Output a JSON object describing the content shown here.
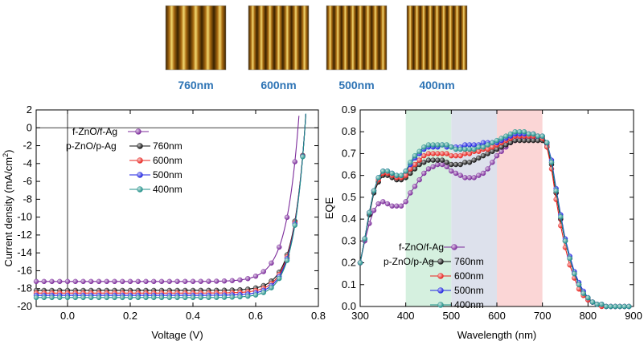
{
  "afm_panels": [
    {
      "label": "760nm",
      "stripes": 5
    },
    {
      "label": "600nm",
      "stripes": 7
    },
    {
      "label": "500nm",
      "stripes": 8
    },
    {
      "label": "400nm",
      "stripes": 9
    }
  ],
  "chart_data": [
    {
      "type": "line",
      "xlabel": "Voltage (V)",
      "ylabel": "Current density (mA/cm",
      "ylabel_sup": "2",
      "ylabel_close": ")",
      "xlim": [
        -0.1,
        0.8
      ],
      "ylim": [
        -20,
        2
      ],
      "xticks": [
        "0.0",
        "0.2",
        "0.4",
        "0.6",
        "0.8"
      ],
      "yticks": [
        "2",
        "0",
        "-2",
        "-4",
        "-6",
        "-8",
        "-10",
        "-12",
        "-14",
        "-16",
        "-18",
        "-20"
      ],
      "legend_position": "upper-left",
      "legend_group_prefix": "p-ZnO/p-Ag",
      "series": [
        {
          "name": "f-ZnO/f-Ag",
          "color": "#7b2a9a",
          "jsc": -17.2,
          "voc": 0.735,
          "n": 1.55
        },
        {
          "name": "760nm",
          "color": "#111111",
          "jsc": -18.2,
          "voc": 0.757,
          "n": 1.45
        },
        {
          "name": "600nm",
          "color": "#e8231e",
          "jsc": -18.5,
          "voc": 0.757,
          "n": 1.45
        },
        {
          "name": "500nm",
          "color": "#1f23e0",
          "jsc": -18.75,
          "voc": 0.757,
          "n": 1.45
        },
        {
          "name": "400nm",
          "color": "#1f8f88",
          "jsc": -19.0,
          "voc": 0.757,
          "n": 1.45
        }
      ]
    },
    {
      "type": "line",
      "xlabel": "Wavelength (nm)",
      "ylabel": "EQE",
      "xlim": [
        300,
        900
      ],
      "ylim": [
        0.0,
        0.9
      ],
      "xticks": [
        "300",
        "400",
        "500",
        "600",
        "700",
        "800",
        "900"
      ],
      "yticks": [
        "0.9",
        "0.8",
        "0.7",
        "0.6",
        "0.5",
        "0.4",
        "0.3",
        "0.2",
        "0.1",
        "0.0"
      ],
      "bands": [
        {
          "from": 400,
          "to": 500,
          "color": "#d5f0df"
        },
        {
          "from": 500,
          "to": 600,
          "color": "#dde1ec"
        },
        {
          "from": 600,
          "to": 700,
          "color": "#fbd6d6"
        }
      ],
      "legend_position": "lower-left",
      "legend_group_prefix": "p-ZnO/p-Ag",
      "x": [
        300,
        310,
        320,
        330,
        340,
        350,
        360,
        370,
        380,
        390,
        400,
        410,
        420,
        430,
        440,
        450,
        460,
        470,
        480,
        490,
        500,
        510,
        520,
        530,
        540,
        550,
        560,
        570,
        580,
        590,
        600,
        610,
        620,
        630,
        640,
        650,
        660,
        670,
        680,
        690,
        700,
        710,
        720,
        730,
        740,
        750,
        760,
        770,
        780,
        790,
        800,
        810,
        820,
        830,
        840,
        850,
        860,
        870,
        880,
        890
      ],
      "series": [
        {
          "name": "f-ZnO/f-Ag",
          "color": "#7b2a9a",
          "values": [
            0.2,
            0.3,
            0.38,
            0.44,
            0.47,
            0.48,
            0.47,
            0.46,
            0.46,
            0.46,
            0.48,
            0.52,
            0.55,
            0.58,
            0.61,
            0.63,
            0.64,
            0.65,
            0.65,
            0.64,
            0.62,
            0.61,
            0.6,
            0.59,
            0.59,
            0.59,
            0.6,
            0.61,
            0.63,
            0.66,
            0.69,
            0.71,
            0.73,
            0.75,
            0.76,
            0.77,
            0.77,
            0.77,
            0.77,
            0.77,
            0.77,
            0.74,
            0.66,
            0.52,
            0.4,
            0.3,
            0.22,
            0.15,
            0.1,
            0.06,
            0.03,
            0.02,
            0.01,
            0.01,
            0.0,
            0.0,
            0.0,
            0.0,
            0.0,
            0.0
          ]
        },
        {
          "name": "760nm",
          "color": "#111111",
          "values": [
            0.2,
            0.31,
            0.42,
            0.52,
            0.57,
            0.6,
            0.6,
            0.59,
            0.58,
            0.58,
            0.59,
            0.61,
            0.63,
            0.65,
            0.66,
            0.67,
            0.67,
            0.67,
            0.67,
            0.66,
            0.65,
            0.65,
            0.65,
            0.66,
            0.66,
            0.67,
            0.68,
            0.69,
            0.7,
            0.71,
            0.72,
            0.73,
            0.74,
            0.75,
            0.76,
            0.76,
            0.76,
            0.76,
            0.76,
            0.76,
            0.76,
            0.73,
            0.65,
            0.52,
            0.4,
            0.3,
            0.22,
            0.15,
            0.1,
            0.06,
            0.04,
            0.02,
            0.01,
            0.01,
            0.0,
            0.0,
            0.0,
            0.0,
            0.0,
            0.0
          ]
        },
        {
          "name": "600nm",
          "color": "#e8231e",
          "values": [
            0.2,
            0.31,
            0.43,
            0.53,
            0.58,
            0.61,
            0.61,
            0.6,
            0.59,
            0.59,
            0.6,
            0.63,
            0.65,
            0.67,
            0.69,
            0.7,
            0.7,
            0.7,
            0.7,
            0.7,
            0.69,
            0.69,
            0.69,
            0.7,
            0.7,
            0.71,
            0.71,
            0.72,
            0.72,
            0.73,
            0.74,
            0.75,
            0.76,
            0.77,
            0.78,
            0.78,
            0.78,
            0.78,
            0.78,
            0.78,
            0.77,
            0.73,
            0.63,
            0.49,
            0.37,
            0.27,
            0.19,
            0.13,
            0.08,
            0.05,
            0.03,
            0.02,
            0.01,
            0.0,
            0.0,
            0.0,
            0.0,
            0.0,
            0.0,
            0.0
          ]
        },
        {
          "name": "500nm",
          "color": "#1f23e0",
          "values": [
            0.2,
            0.31,
            0.43,
            0.53,
            0.59,
            0.62,
            0.62,
            0.61,
            0.6,
            0.6,
            0.62,
            0.65,
            0.68,
            0.7,
            0.72,
            0.73,
            0.73,
            0.73,
            0.74,
            0.73,
            0.73,
            0.73,
            0.73,
            0.74,
            0.74,
            0.74,
            0.74,
            0.75,
            0.75,
            0.75,
            0.75,
            0.76,
            0.77,
            0.78,
            0.79,
            0.79,
            0.79,
            0.79,
            0.79,
            0.78,
            0.78,
            0.75,
            0.67,
            0.54,
            0.42,
            0.31,
            0.23,
            0.16,
            0.11,
            0.07,
            0.04,
            0.02,
            0.01,
            0.01,
            0.0,
            0.0,
            0.0,
            0.0,
            0.0,
            0.0
          ]
        },
        {
          "name": "400nm",
          "color": "#1f8f88",
          "values": [
            0.2,
            0.31,
            0.43,
            0.53,
            0.59,
            0.62,
            0.62,
            0.61,
            0.6,
            0.6,
            0.62,
            0.66,
            0.69,
            0.71,
            0.73,
            0.74,
            0.74,
            0.74,
            0.74,
            0.74,
            0.73,
            0.72,
            0.72,
            0.72,
            0.72,
            0.72,
            0.73,
            0.73,
            0.74,
            0.75,
            0.76,
            0.77,
            0.78,
            0.79,
            0.8,
            0.8,
            0.8,
            0.79,
            0.79,
            0.78,
            0.78,
            0.75,
            0.66,
            0.53,
            0.41,
            0.3,
            0.22,
            0.15,
            0.1,
            0.06,
            0.04,
            0.02,
            0.01,
            0.01,
            0.0,
            0.0,
            0.0,
            0.0,
            0.0,
            0.0
          ]
        }
      ]
    }
  ]
}
